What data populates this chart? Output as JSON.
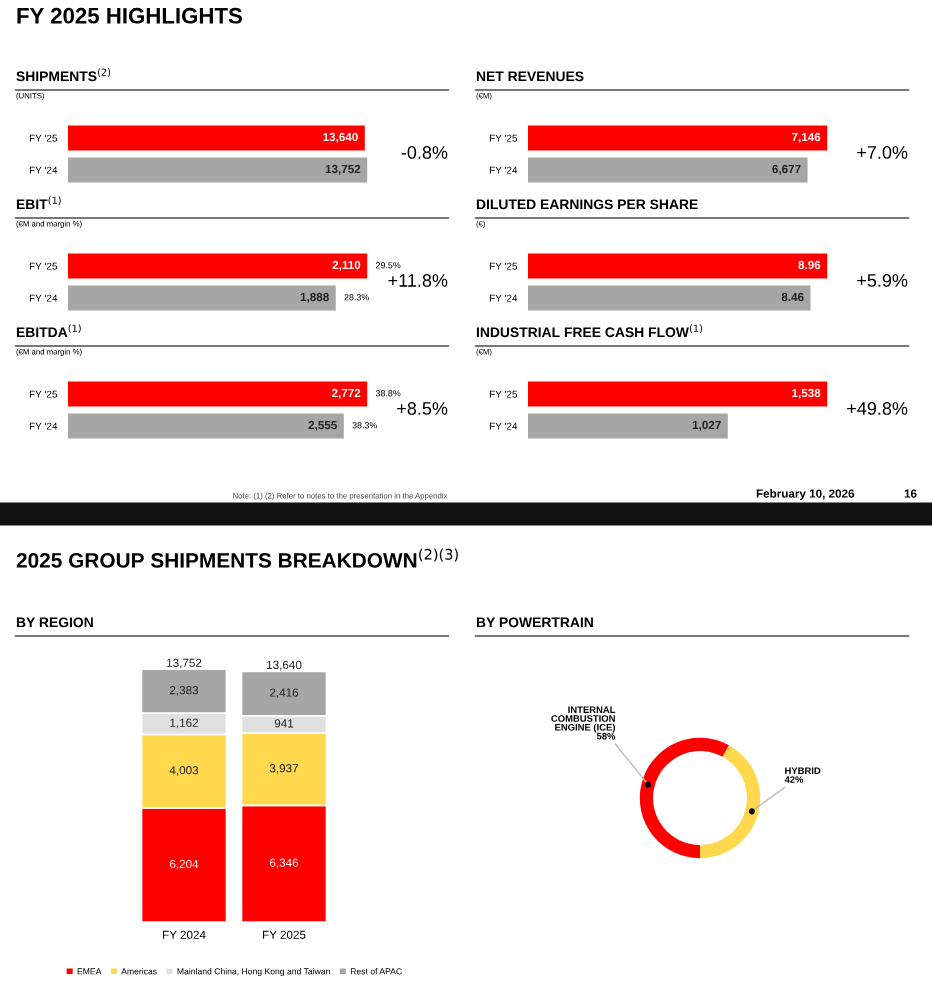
{
  "chart_data": [
    {
      "type": "bar",
      "orientation": "horizontal",
      "title": "SHIPMENTS$^{(2)}$",
      "subtitle": "(UNITS)",
      "categories": [
        "FY '25",
        "FY '24"
      ],
      "values": [
        13640,
        13752
      ],
      "value_labels": [
        "13,640",
        "13,752"
      ],
      "colors": [
        "#ff0000",
        "#a6a6a6"
      ],
      "annotations": [
        "-0.8%",
        "FY 2025 HIGHLIGHTS"
      ]
    },
    {
      "type": "bar",
      "orientation": "horizontal",
      "title": "NET REVENUES",
      "subtitle": "(€M)",
      "categories": [
        "FY '25",
        "FY '24"
      ],
      "values": [
        7146,
        6677
      ],
      "value_labels": [
        "7,146",
        "6,677"
      ],
      "colors": [
        "#ff0000",
        "#a6a6a6"
      ],
      "annotations": [
        "+7.0%"
      ]
    },
    {
      "type": "bar",
      "orientation": "horizontal",
      "title": "EBIT$^{(1)}$",
      "subtitle": "(€M and margin %)",
      "categories": [
        "FY '25",
        "FY '24"
      ],
      "values": [
        2110,
        1888
      ],
      "value_labels": [
        "2,110",
        "1,888"
      ],
      "colors": [
        "#ff0000",
        "#a6a6a6"
      ],
      "annotations": [
        "+11.8%",
        {
          "text": "29.5%",
          "x": 2110,
          "y": "FY '25"
        },
        {
          "text": "28.3%",
          "x": 1888,
          "y": "FY '24"
        }
      ]
    },
    {
      "type": "bar",
      "orientation": "horizontal",
      "title": "DILUTED EARNINGS PER SHARE",
      "subtitle": "(€)",
      "categories": [
        "FY '25",
        "FY '24"
      ],
      "values": [
        8.96,
        8.46
      ],
      "value_labels": [
        "8.96",
        "8.46"
      ],
      "colors": [
        "#ff0000",
        "#a6a6a6"
      ],
      "annotations": [
        "+5.9%"
      ]
    },
    {
      "type": "bar",
      "orientation": "horizontal",
      "title": "EBITDA$^{(1)}$",
      "subtitle": "(€M and margin %)",
      "categories": [
        "FY '25",
        "FY '24"
      ],
      "values": [
        2772,
        2555
      ],
      "value_labels": [
        "2,772",
        "2,555"
      ],
      "colors": [
        "#ff0000",
        "#a6a6a6"
      ],
      "annotations": [
        "+8.5%",
        {
          "text": "38.8%",
          "x": 2772,
          "y": "FY '25"
        },
        {
          "text": "38.3%",
          "x": 2555,
          "y": "FY '24"
        }
      ]
    },
    {
      "type": "bar",
      "orientation": "horizontal",
      "title": "INDUSTRIAL FREE CASH FLOW$^{(1)}$",
      "subtitle": "(€M)",
      "categories": [
        "FY '25",
        "FY '24"
      ],
      "values": [
        1538,
        1027
      ],
      "value_labels": [
        "1,538",
        "1,027"
      ],
      "colors": [
        "#ff0000",
        "#a6a6a6"
      ],
      "annotations": [
        "+49.8%",
        "Note: (1) (2) Refer to notes to the presentation in the Appendix",
        "February 10, 2026",
        "16"
      ]
    },
    {
      "type": "bar",
      "stacked": true,
      "title": "BY REGION",
      "categories": [
        "FY 2024",
        "FY 2025"
      ],
      "legend": "bottom",
      "totals": [
        "13,752",
        "13,640"
      ],
      "series": [
        {
          "name": "EMEA",
          "color": "#ff0000",
          "values": [
            6204,
            6346
          ],
          "value_labels": [
            "6,204",
            "6,346"
          ]
        },
        {
          "name": "Americas",
          "color": "#ffd84d",
          "values": [
            4003,
            3937
          ],
          "value_labels": [
            "4,003",
            "3,937"
          ]
        },
        {
          "name": "Mainland China, Hong Kong and Taiwan",
          "color": "#e0e0e0",
          "values": [
            1162,
            941
          ],
          "value_labels": [
            "1,162",
            "941"
          ]
        },
        {
          "name": "Rest of APAC",
          "color": "#a6a6a6",
          "values": [
            2383,
            2416
          ],
          "value_labels": [
            "2,383",
            "2,416"
          ]
        }
      ],
      "annotations": [
        "2025 GROUP SHIPMENTS BREAKDOWN$^{(2)(3)}$"
      ]
    },
    {
      "type": "donut",
      "title": "BY POWERTRAIN",
      "categories": [
        "INTERNAL\nCOMBUSTION\nENGINE (ICE)",
        "HYBRID"
      ],
      "values": [
        58,
        42
      ],
      "value_labels": [
        "58%",
        "42%"
      ],
      "colors": [
        "#ff0000",
        "#ffd84d"
      ]
    }
  ]
}
